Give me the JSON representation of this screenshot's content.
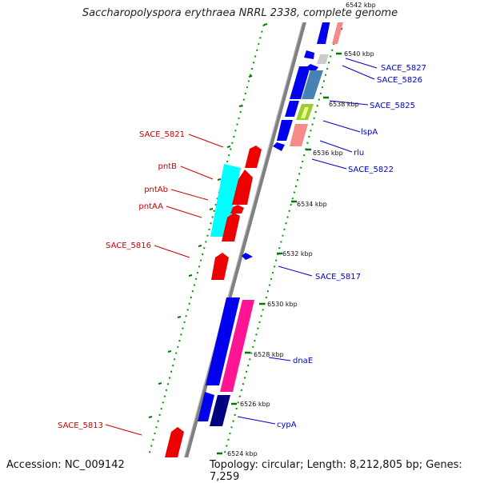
{
  "title": "Saccharopolyspora erythraea NRRL 2338, complete genome",
  "footer": {
    "accession": "Accession: NC_009142",
    "topology": "Topology: circular; Length: 8,212,805 bp; Genes: 7,259"
  },
  "ruler": {
    "ticks": [
      {
        "label": "6542 kbp"
      },
      {
        "label": "6540 kbp"
      },
      {
        "label": "6538 kbp"
      },
      {
        "label": "6536 kbp"
      },
      {
        "label": "6534 kbp"
      },
      {
        "label": "6532 kbp"
      },
      {
        "label": "6530 kbp"
      },
      {
        "label": "6528 kbp"
      },
      {
        "label": "6526 kbp"
      },
      {
        "label": "6524 kbp"
      }
    ]
  },
  "gene_labels": {
    "reverse_strand": [
      "SACE_5821",
      "pntB",
      "pntAb",
      "pntAA",
      "SACE_5816",
      "SACE_5813"
    ],
    "forward_strand": [
      "SACE_5827",
      "SACE_5826",
      "SACE_5825",
      "lspA",
      "rlu",
      "SACE_5822",
      "SACE_5817",
      "dnaE",
      "cypA"
    ]
  },
  "colors": {
    "forward_label": "#0000cc",
    "reverse_label": "#cc0000",
    "backbone": "#808080",
    "tick": "#007700",
    "dots": "#009900"
  }
}
